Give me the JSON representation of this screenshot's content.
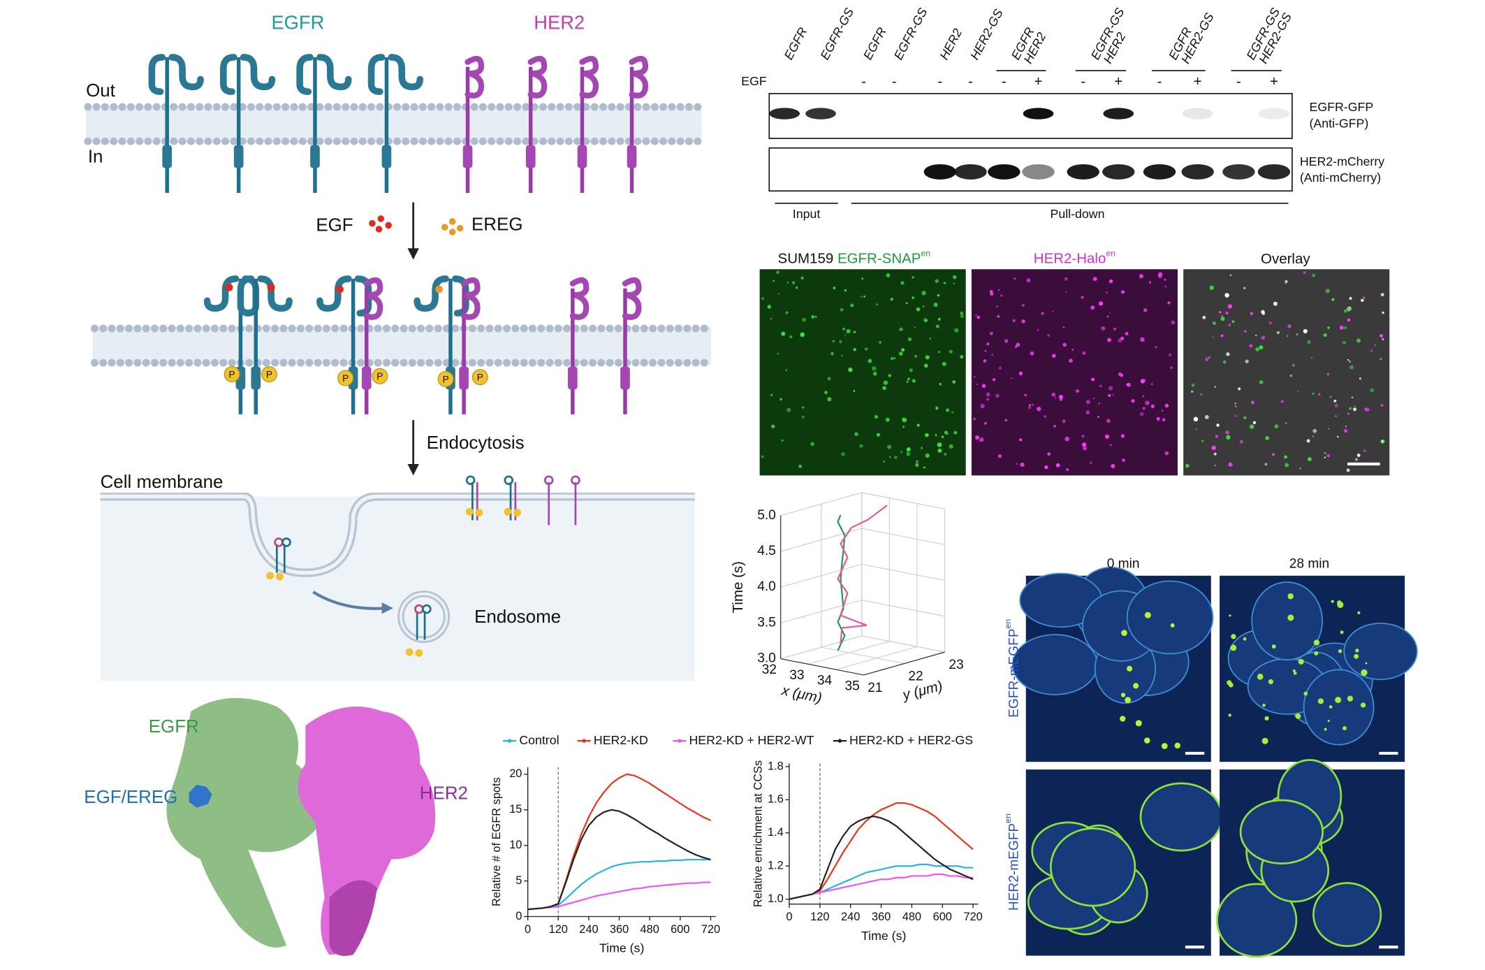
{
  "schematic": {
    "egfr_label": "EGFR",
    "her2_label": "HER2",
    "out_label": "Out",
    "in_label": "In",
    "egf_label": "EGF",
    "ereg_label": "EREG",
    "phospho_label": "P",
    "endocytosis_label": "Endocytosis",
    "cell_membrane_label": "Cell membrane",
    "endosome_label": "Endosome"
  },
  "structure": {
    "egfr_label": "EGFR",
    "ligand_label": "EGF/EREG",
    "her2_label": "HER2"
  },
  "western_blot": {
    "lane_labels": [
      "EGFR",
      "EGFR-GS",
      "EGFR",
      "EGFR-GS",
      "HER2",
      "HER2-GS",
      [
        "EGFR",
        "HER2"
      ],
      [
        "EGFR-GS",
        "HER2"
      ],
      [
        "EGFR",
        "HER2-GS"
      ],
      [
        "EGFR-GS",
        "HER2-GS"
      ]
    ],
    "egf_label": "EGF",
    "egf_signs": [
      "-",
      "-",
      "-",
      "-",
      "-",
      "+",
      "-",
      "+",
      "-",
      "+",
      "-",
      "+"
    ],
    "blot1_label": [
      "EGFR-GFP",
      "(Anti-GFP)"
    ],
    "blot2_label": [
      "HER2-mCherry",
      "(Anti-mCherry)"
    ],
    "input_label": "Input",
    "pulldown_label": "Pull-down"
  },
  "microscopy": {
    "cell_line": "SUM159",
    "egfr_label": "EGFR-SNAP",
    "her2_label": "HER2-Halo",
    "superscript": "en",
    "overlay_label": "Overlay"
  },
  "timelapse": {
    "col_labels": [
      "0 min",
      "28 min"
    ],
    "row_labels": [
      "EGFR-mEGFP",
      "HER2-mEGFP"
    ],
    "superscript": "en"
  },
  "chart_data": [
    {
      "type": "line",
      "xlabel": "Time (s)",
      "ylabel": "Relative # of EGFR spots",
      "x": [
        0,
        30,
        60,
        90,
        120,
        150,
        180,
        210,
        240,
        270,
        300,
        330,
        360,
        390,
        420,
        450,
        480,
        510,
        540,
        570,
        600,
        630,
        660,
        690,
        720
      ],
      "xlim": [
        0,
        740
      ],
      "xticks": [
        0,
        120,
        240,
        360,
        480,
        600,
        720
      ],
      "ylim": [
        0,
        21
      ],
      "yticks": [
        0,
        5,
        10,
        15,
        20
      ],
      "marker_x": 120,
      "series": [
        {
          "name": "Control",
          "color": "#27b3e6",
          "values": [
            1,
            1.1,
            1.2,
            1.4,
            1.6,
            2.5,
            3.5,
            4.5,
            5.3,
            6,
            6.5,
            7,
            7.3,
            7.5,
            7.6,
            7.7,
            7.7,
            7.8,
            7.8,
            7.9,
            7.9,
            8,
            8,
            8,
            8
          ]
        },
        {
          "name": "HER2-KD",
          "color": "#e8341c",
          "values": [
            1,
            1.1,
            1.2,
            1.4,
            1.8,
            5,
            8.5,
            11.5,
            14,
            16,
            17.5,
            18.7,
            19.5,
            20,
            19.8,
            19.3,
            18.7,
            18,
            17.3,
            16.6,
            15.9,
            15.2,
            14.6,
            14,
            13.5
          ]
        },
        {
          "name": "HER2-KD + HER2-WT",
          "color": "#ee55ee",
          "values": [
            1,
            1.1,
            1.2,
            1.3,
            1.4,
            1.7,
            2,
            2.3,
            2.6,
            2.9,
            3.1,
            3.3,
            3.5,
            3.7,
            3.9,
            4,
            4.2,
            4.3,
            4.4,
            4.5,
            4.6,
            4.7,
            4.7,
            4.8,
            4.8
          ]
        },
        {
          "name": "HER2-KD + HER2-GS",
          "color": "#222222",
          "values": [
            1,
            1.1,
            1.2,
            1.4,
            1.8,
            4.8,
            8,
            10.8,
            12.8,
            14,
            14.7,
            15,
            14.8,
            14.3,
            13.7,
            13,
            12.3,
            11.7,
            11,
            10.4,
            9.8,
            9.2,
            8.7,
            8.3,
            8
          ]
        }
      ]
    },
    {
      "type": "line",
      "xlabel": "Time (s)",
      "ylabel": "Relative enrichment at CCSs",
      "x": [
        0,
        30,
        60,
        90,
        120,
        150,
        180,
        210,
        240,
        270,
        300,
        330,
        360,
        390,
        420,
        450,
        480,
        510,
        540,
        570,
        600,
        630,
        660,
        690,
        720
      ],
      "xlim": [
        0,
        740
      ],
      "xticks": [
        0,
        120,
        240,
        360,
        480,
        600,
        720
      ],
      "ylim": [
        0.97,
        1.82
      ],
      "yticks": [
        {
          "value": 1,
          "label": "1.0"
        },
        1.2,
        1.4,
        1.6,
        1.8
      ],
      "marker_x": 120,
      "series": [
        {
          "color": "#27b3e6",
          "values": [
            1,
            1.01,
            1.02,
            1.03,
            1.04,
            1.06,
            1.08,
            1.1,
            1.12,
            1.14,
            1.16,
            1.17,
            1.18,
            1.19,
            1.2,
            1.2,
            1.2,
            1.21,
            1.21,
            1.2,
            1.2,
            1.2,
            1.2,
            1.19,
            1.19
          ]
        },
        {
          "color": "#e8341c",
          "values": [
            1,
            1.01,
            1.02,
            1.03,
            1.05,
            1.12,
            1.2,
            1.28,
            1.35,
            1.42,
            1.47,
            1.51,
            1.54,
            1.56,
            1.58,
            1.58,
            1.57,
            1.55,
            1.53,
            1.5,
            1.46,
            1.42,
            1.38,
            1.34,
            1.3
          ]
        },
        {
          "color": "#ee55ee",
          "values": [
            1,
            1.01,
            1.02,
            1.03,
            1.04,
            1.05,
            1.06,
            1.07,
            1.08,
            1.09,
            1.1,
            1.11,
            1.12,
            1.12,
            1.13,
            1.13,
            1.14,
            1.14,
            1.14,
            1.15,
            1.15,
            1.14,
            1.14,
            1.13,
            1.13
          ]
        },
        {
          "color": "#222222",
          "values": [
            1,
            1.01,
            1.02,
            1.03,
            1.06,
            1.18,
            1.3,
            1.38,
            1.44,
            1.47,
            1.49,
            1.5,
            1.49,
            1.47,
            1.44,
            1.4,
            1.36,
            1.32,
            1.28,
            1.24,
            1.21,
            1.18,
            1.16,
            1.14,
            1.12
          ]
        }
      ]
    },
    {
      "type": "line3d",
      "xlabel": "x (μm)",
      "ylabel": "y (μm)",
      "zlabel": "Time (s)",
      "xlim": [
        32,
        35
      ],
      "xticks": [
        32,
        33,
        34,
        35
      ],
      "ylim": [
        21,
        23
      ],
      "yticks": [
        21,
        22,
        23
      ],
      "zlim": [
        3,
        5
      ],
      "zticks": [
        {
          "value": 3,
          "label": "3.0"
        },
        3.5,
        {
          "value": 4,
          "label": "4.0"
        },
        4.5,
        {
          "value": 5,
          "label": "5.0"
        }
      ],
      "series": [
        {
          "color": "#1f9a4a",
          "x": [
            32.6,
            32.7,
            32.6,
            32.8,
            32.6,
            32.7,
            32.6,
            32.8,
            32.7,
            32.6,
            32.7
          ],
          "y": [
            22.0,
            22.1,
            22.0,
            22.0,
            22.1,
            22.0,
            22.1,
            22.0,
            22.1,
            22.0,
            22.0
          ],
          "z": [
            3.0,
            3.2,
            3.4,
            3.6,
            3.8,
            4.0,
            4.2,
            4.4,
            4.6,
            4.8,
            4.9
          ]
        },
        {
          "color": "#e8559a",
          "x": [
            32.7,
            32.6,
            33.2,
            32.7,
            32.8,
            32.6,
            32.8,
            32.7,
            32.8,
            33.1,
            33.5
          ],
          "y": [
            22.0,
            22.1,
            22.3,
            22.0,
            22.1,
            22.0,
            22.1,
            22.0,
            22.2,
            22.4,
            22.6
          ],
          "z": [
            3.1,
            3.3,
            3.35,
            3.5,
            3.8,
            4.0,
            4.3,
            4.5,
            4.7,
            4.8,
            5.0
          ]
        }
      ]
    }
  ]
}
